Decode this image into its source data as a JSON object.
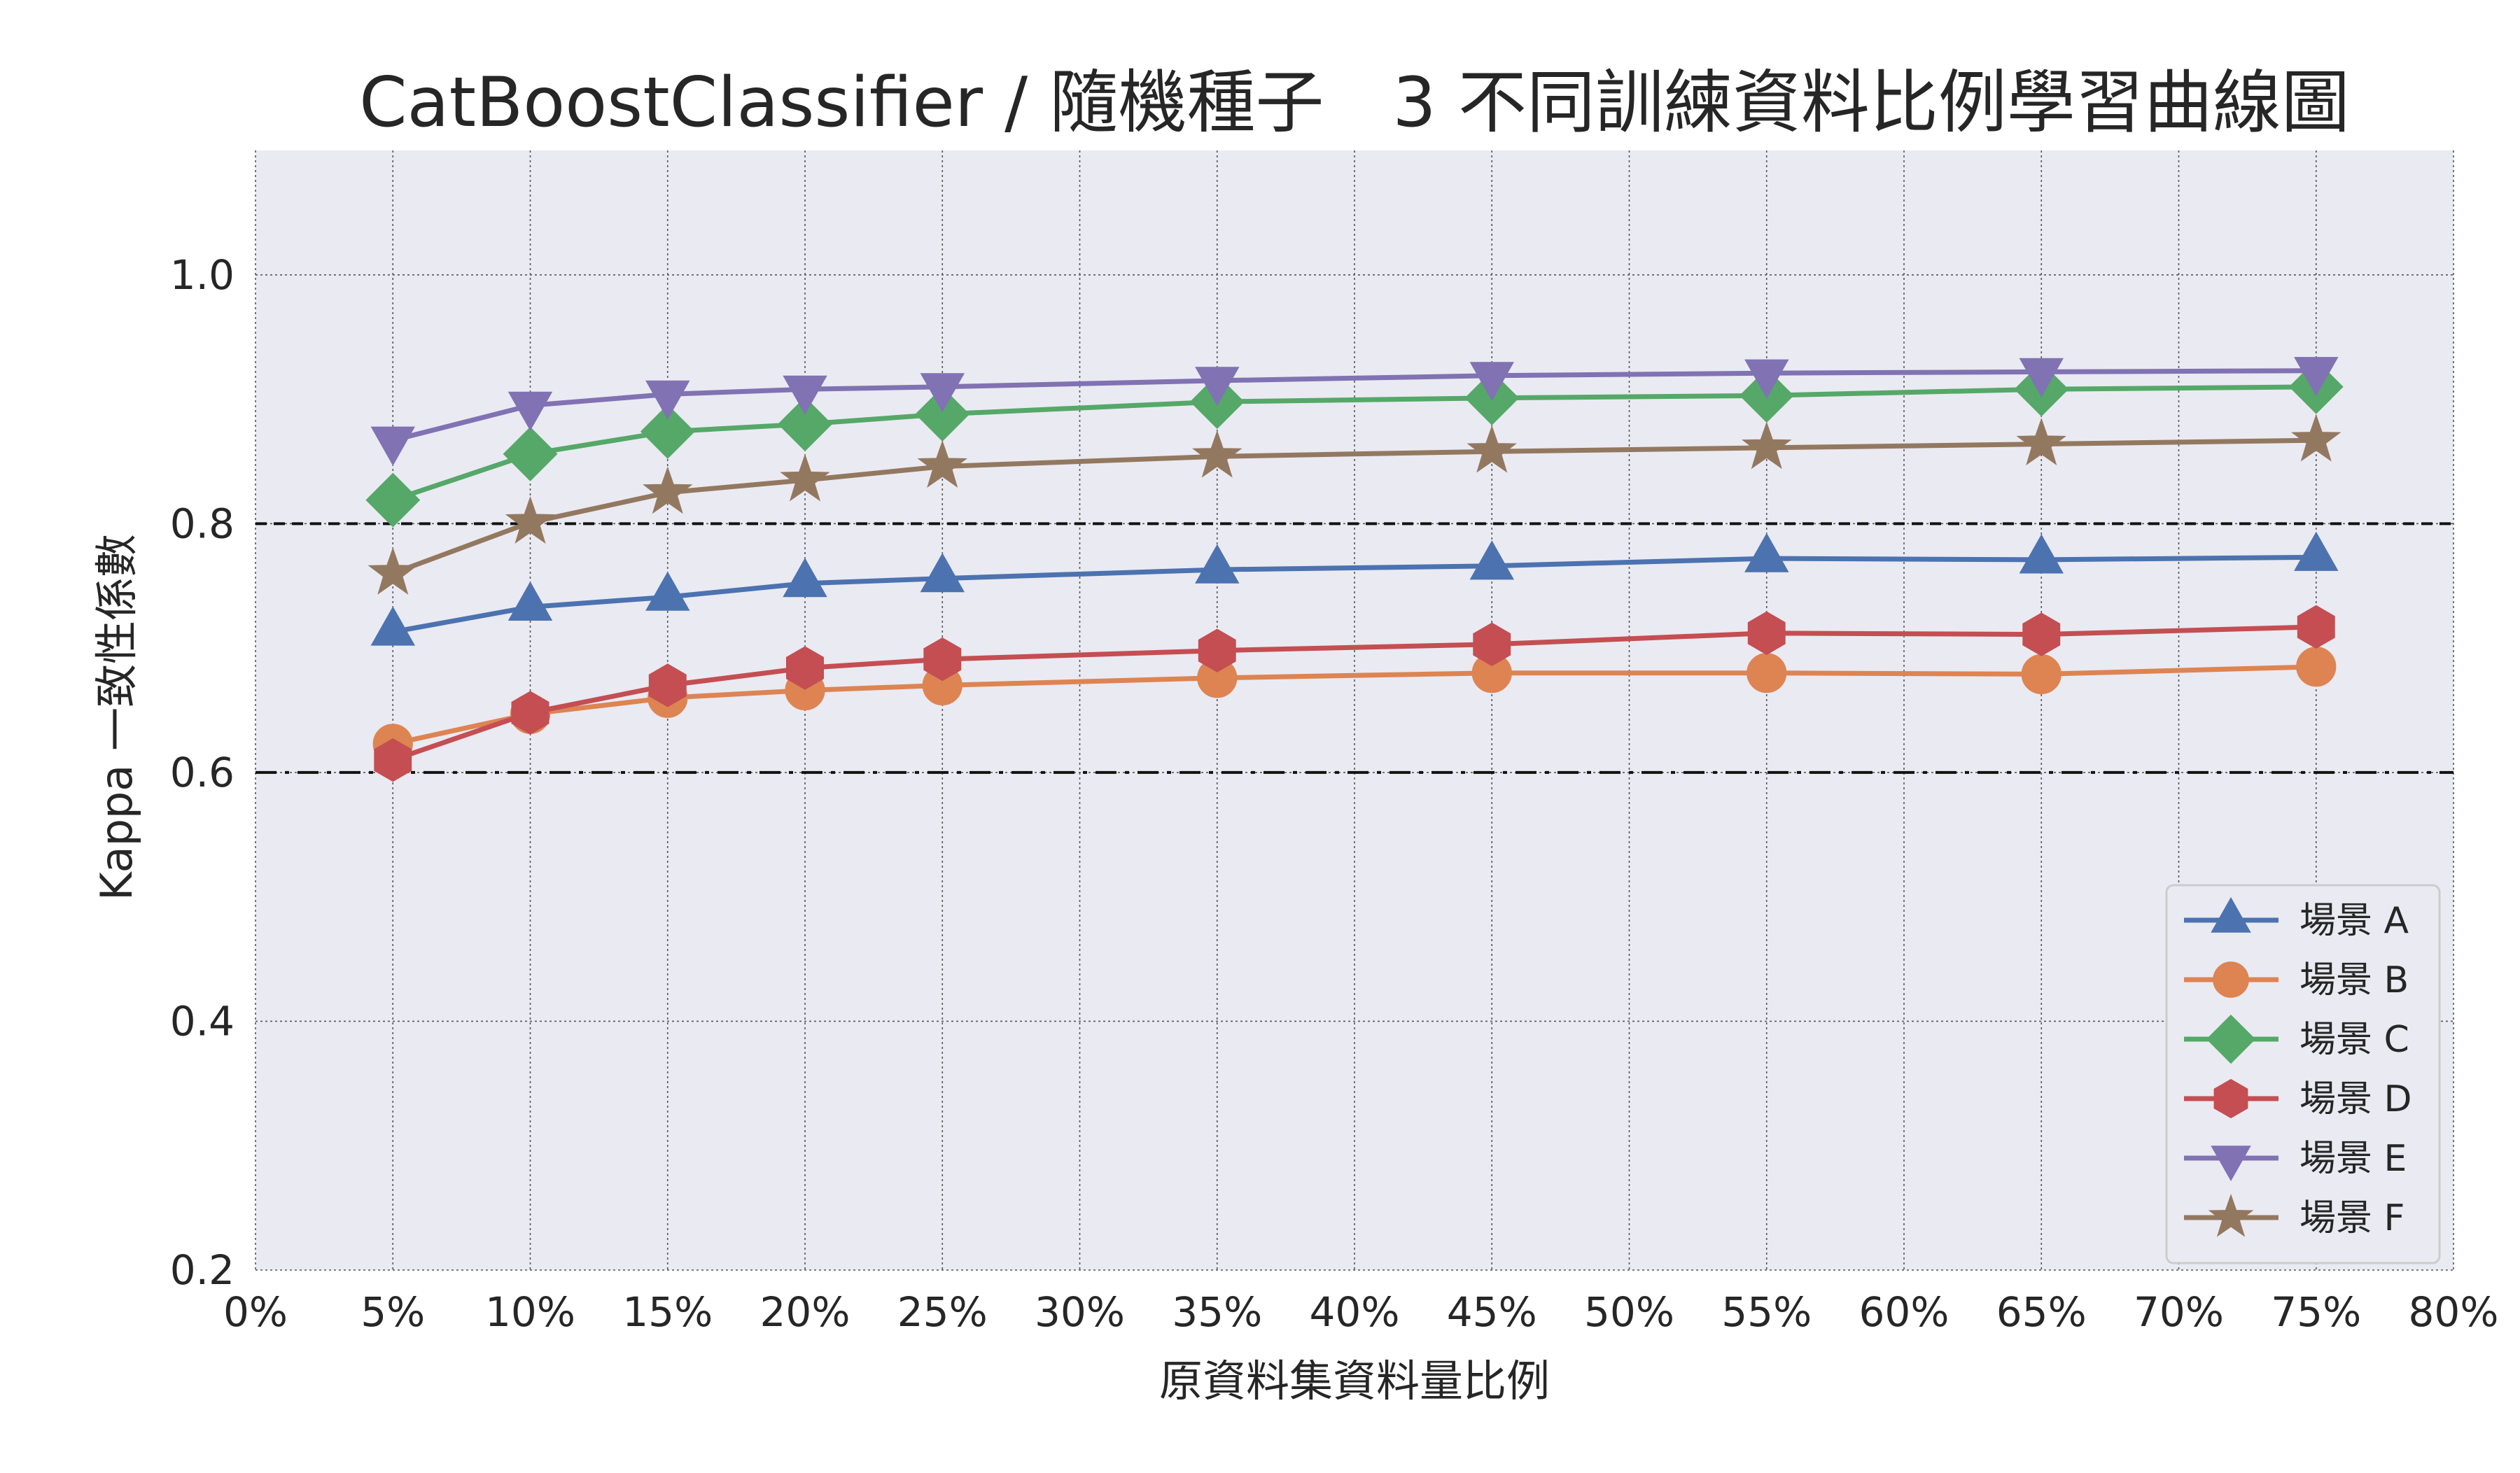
{
  "chart_data": {
    "type": "line",
    "title": "CatBoostClassifier / 隨機種子　3 不同訓練資料比例學習曲線圖",
    "xlabel": "原資料集資料量比例",
    "ylabel": "Kappa 一致性係數",
    "xlim": [
      0,
      80
    ],
    "ylim": [
      0.2,
      1.1
    ],
    "x_ticks": [
      0,
      5,
      10,
      15,
      20,
      25,
      30,
      35,
      40,
      45,
      50,
      55,
      60,
      65,
      70,
      75,
      80
    ],
    "x_tick_labels": [
      "0%",
      "5%",
      "10%",
      "15%",
      "20%",
      "25%",
      "30%",
      "35%",
      "40%",
      "45%",
      "50%",
      "55%",
      "60%",
      "65%",
      "70%",
      "75%",
      "80%"
    ],
    "y_ticks": [
      0.2,
      0.4,
      0.6,
      0.8,
      1.0
    ],
    "y_tick_labels": [
      "0.2",
      "0.4",
      "0.6",
      "0.8",
      "1.0"
    ],
    "grid": true,
    "legend_position": "bottom-right",
    "reference_lines": [
      {
        "y": 0.8,
        "style": "dashed"
      },
      {
        "y": 0.6,
        "style": "dashdot"
      }
    ],
    "x": [
      5,
      10,
      15,
      20,
      25,
      35,
      45,
      55,
      65,
      75
    ],
    "series": [
      {
        "name": "場景 A",
        "color": "#4c72b0",
        "marker": "triangle-up",
        "values": [
          0.713,
          0.733,
          0.741,
          0.752,
          0.756,
          0.763,
          0.766,
          0.772,
          0.771,
          0.773
        ]
      },
      {
        "name": "場景 B",
        "color": "#dd8452",
        "marker": "circle",
        "values": [
          0.623,
          0.647,
          0.66,
          0.666,
          0.67,
          0.676,
          0.68,
          0.68,
          0.679,
          0.685
        ]
      },
      {
        "name": "場景 C",
        "color": "#55a868",
        "marker": "diamond",
        "values": [
          0.819,
          0.856,
          0.874,
          0.88,
          0.888,
          0.898,
          0.901,
          0.903,
          0.908,
          0.91
        ]
      },
      {
        "name": "場景 D",
        "color": "#c44e52",
        "marker": "hexagon",
        "values": [
          0.61,
          0.648,
          0.67,
          0.684,
          0.691,
          0.698,
          0.703,
          0.712,
          0.711,
          0.717
        ]
      },
      {
        "name": "場景 E",
        "color": "#8172b3",
        "marker": "triangle-down",
        "values": [
          0.867,
          0.895,
          0.904,
          0.908,
          0.91,
          0.915,
          0.919,
          0.921,
          0.922,
          0.923
        ]
      },
      {
        "name": "場景 F",
        "color": "#937860",
        "marker": "star",
        "values": [
          0.76,
          0.801,
          0.825,
          0.835,
          0.846,
          0.854,
          0.858,
          0.861,
          0.864,
          0.867
        ]
      }
    ]
  }
}
